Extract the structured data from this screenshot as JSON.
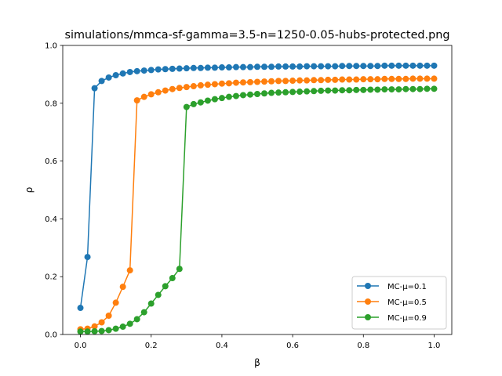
{
  "chart_data": {
    "type": "line",
    "title": "simulations/mmca-sf-gamma=3.5-n=1250-0.05-hubs-protected.png",
    "xlabel": "β",
    "ylabel": "ρ",
    "xlim": [
      -0.05,
      1.05
    ],
    "ylim": [
      0.0,
      1.0
    ],
    "xticks": [
      0.0,
      0.2,
      0.4,
      0.6,
      0.8,
      1.0
    ],
    "xtick_labels": [
      "0.0",
      "0.2",
      "0.4",
      "0.6",
      "0.8",
      "1.0"
    ],
    "yticks": [
      0.0,
      0.2,
      0.4,
      0.6,
      0.8,
      1.0
    ],
    "ytick_labels": [
      "0.0",
      "0.2",
      "0.4",
      "0.6",
      "0.8",
      "1.0"
    ],
    "grid": false,
    "legend_position": "lower-right",
    "x": [
      0.0,
      0.02,
      0.04,
      0.06,
      0.08,
      0.1,
      0.12,
      0.14,
      0.16,
      0.18,
      0.2,
      0.22,
      0.24,
      0.26,
      0.28,
      0.3,
      0.32,
      0.34,
      0.36,
      0.38,
      0.4,
      0.42,
      0.44,
      0.46,
      0.48,
      0.5,
      0.52,
      0.54,
      0.56,
      0.58,
      0.6,
      0.62,
      0.64,
      0.66,
      0.68,
      0.7,
      0.72,
      0.74,
      0.76,
      0.78,
      0.8,
      0.82,
      0.84,
      0.86,
      0.88,
      0.9,
      0.92,
      0.94,
      0.96,
      0.98,
      1.0
    ],
    "series": [
      {
        "name": "MC-μ=0.1",
        "color": "#1f77b4",
        "values": [
          0.092,
          0.268,
          0.852,
          0.877,
          0.889,
          0.897,
          0.903,
          0.908,
          0.911,
          0.913,
          0.915,
          0.917,
          0.918,
          0.919,
          0.92,
          0.921,
          0.922,
          0.922,
          0.923,
          0.923,
          0.924,
          0.924,
          0.925,
          0.925,
          0.925,
          0.926,
          0.926,
          0.926,
          0.927,
          0.927,
          0.927,
          0.927,
          0.928,
          0.928,
          0.928,
          0.928,
          0.928,
          0.929,
          0.929,
          0.929,
          0.929,
          0.929,
          0.929,
          0.93,
          0.93,
          0.93,
          0.93,
          0.93,
          0.93,
          0.93,
          0.93
        ]
      },
      {
        "name": "MC-μ=0.5",
        "color": "#ff7f0e",
        "values": [
          0.018,
          0.02,
          0.028,
          0.042,
          0.065,
          0.11,
          0.165,
          0.222,
          0.81,
          0.822,
          0.831,
          0.838,
          0.844,
          0.849,
          0.853,
          0.856,
          0.859,
          0.862,
          0.864,
          0.866,
          0.868,
          0.869,
          0.871,
          0.872,
          0.873,
          0.874,
          0.875,
          0.876,
          0.877,
          0.877,
          0.878,
          0.879,
          0.879,
          0.88,
          0.88,
          0.881,
          0.881,
          0.882,
          0.882,
          0.882,
          0.883,
          0.883,
          0.883,
          0.884,
          0.884,
          0.884,
          0.884,
          0.885,
          0.885,
          0.885,
          0.885
        ]
      },
      {
        "name": "MC-μ=0.9",
        "color": "#2ca02c",
        "values": [
          0.01,
          0.01,
          0.011,
          0.012,
          0.015,
          0.02,
          0.027,
          0.037,
          0.053,
          0.077,
          0.107,
          0.137,
          0.167,
          0.195,
          0.227,
          0.787,
          0.797,
          0.803,
          0.809,
          0.814,
          0.818,
          0.822,
          0.825,
          0.828,
          0.83,
          0.832,
          0.834,
          0.836,
          0.837,
          0.838,
          0.839,
          0.84,
          0.841,
          0.842,
          0.843,
          0.844,
          0.844,
          0.845,
          0.845,
          0.846,
          0.846,
          0.847,
          0.847,
          0.848,
          0.848,
          0.848,
          0.849,
          0.849,
          0.849,
          0.85,
          0.85
        ]
      }
    ]
  }
}
